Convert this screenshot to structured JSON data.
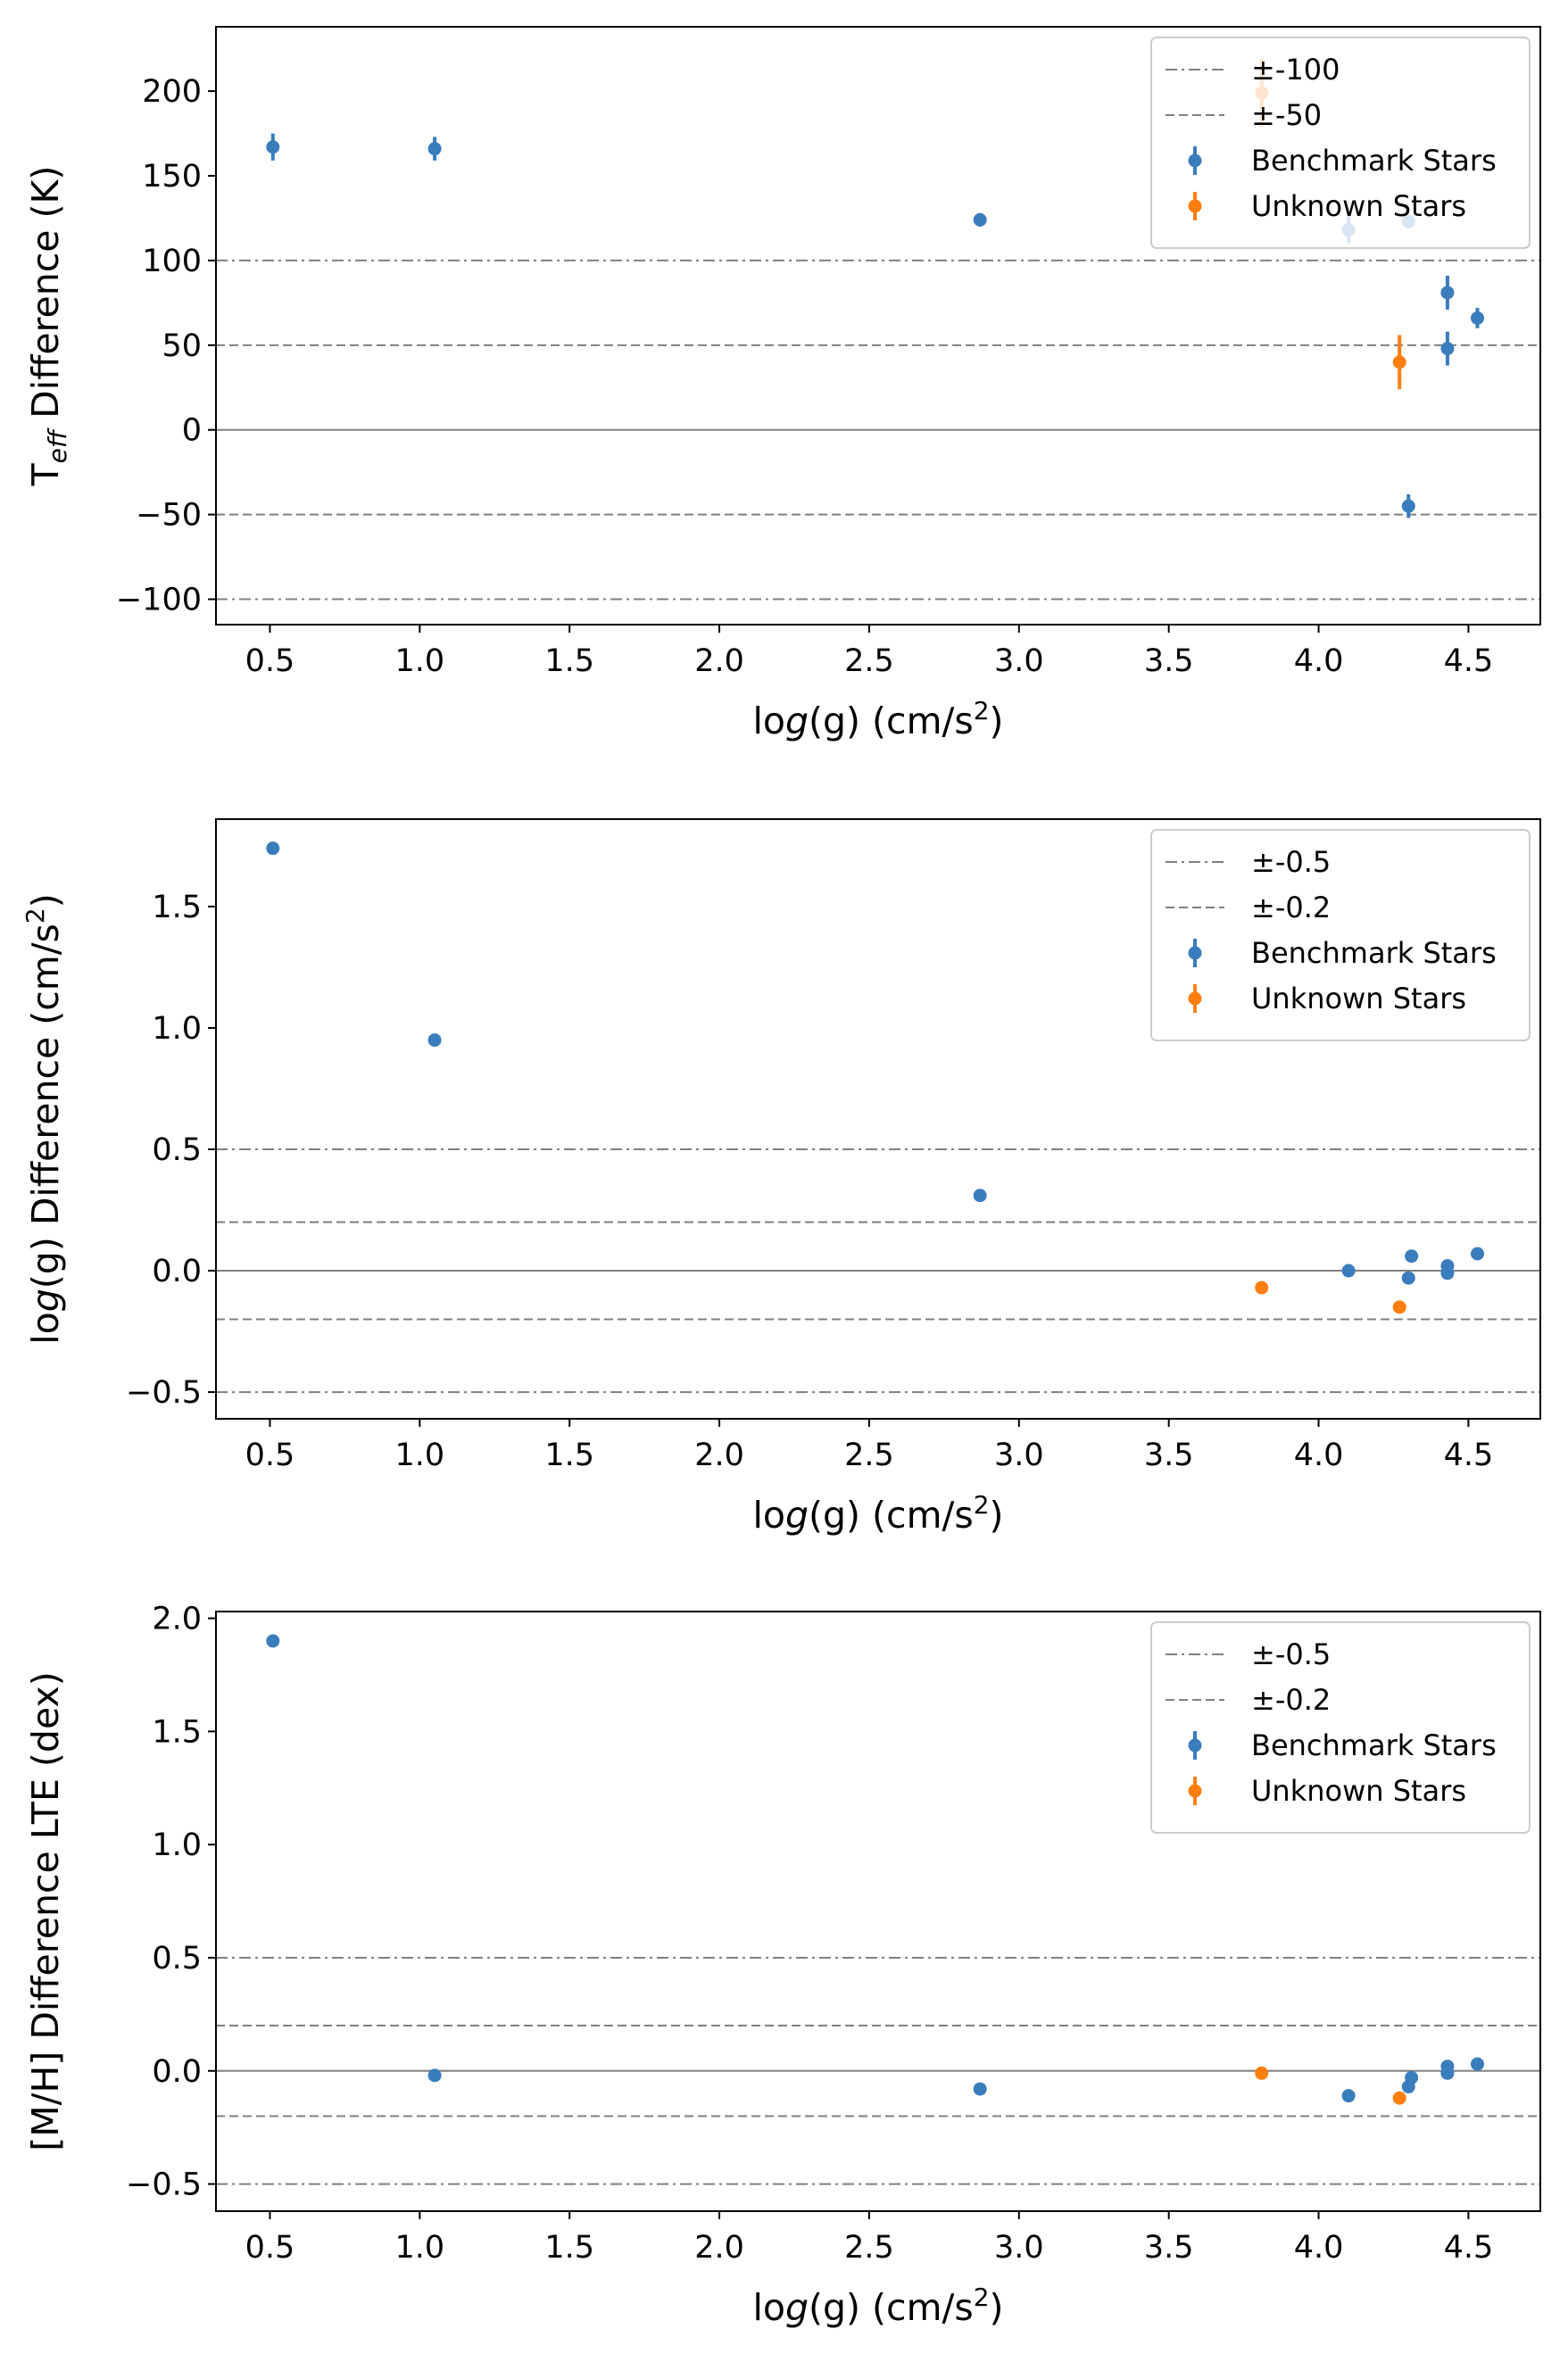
{
  "chart_data": [
    {
      "type": "scatter",
      "xlabel": "log(g) (cm/s2)",
      "ylabel": "Teff Difference (K)",
      "xlim": [
        0.32,
        4.74
      ],
      "ylim": [
        -115,
        238
      ],
      "xticks": [
        "0.5",
        "1.0",
        "1.5",
        "2.0",
        "2.5",
        "3.0",
        "3.5",
        "4.0",
        "4.5"
      ],
      "yticks": [
        "−100",
        "−50",
        "0",
        "50",
        "100",
        "150",
        "200"
      ],
      "reference_lines": [
        {
          "y": 0,
          "style": "solid"
        },
        {
          "y": 50,
          "style": "dashed"
        },
        {
          "y": -50,
          "style": "dashed"
        },
        {
          "y": 100,
          "style": "dashdot"
        },
        {
          "y": -100,
          "style": "dashdot"
        }
      ],
      "legend": {
        "position": "top-right",
        "entries": [
          {
            "label": "±-100",
            "kind": "dashdot"
          },
          {
            "label": "±-50",
            "kind": "dashed"
          },
          {
            "label": "Benchmark Stars",
            "kind": "errorbar",
            "color": "#3a7dbd"
          },
          {
            "label": "Unknown Stars",
            "kind": "errorbar",
            "color": "#ff7f0e"
          }
        ]
      },
      "series": [
        {
          "name": "Benchmark Stars",
          "color": "#3a7dbd",
          "points": [
            {
              "x": 0.51,
              "y": 167,
              "err": 8
            },
            {
              "x": 1.05,
              "y": 166,
              "err": 7
            },
            {
              "x": 2.87,
              "y": 124,
              "err": 4
            },
            {
              "x": 4.1,
              "y": 118,
              "err": 8
            },
            {
              "x": 4.3,
              "y": 123,
              "err": 4
            },
            {
              "x": 4.3,
              "y": -45,
              "err": 7
            },
            {
              "x": 4.43,
              "y": 81,
              "err": 10
            },
            {
              "x": 4.43,
              "y": 48,
              "err": 10
            },
            {
              "x": 4.53,
              "y": 66,
              "err": 6
            }
          ]
        },
        {
          "name": "Unknown Stars",
          "color": "#ff7f0e",
          "points": [
            {
              "x": 3.81,
              "y": 199,
              "err": 20
            },
            {
              "x": 4.27,
              "y": 40,
              "err": 16
            }
          ]
        }
      ]
    },
    {
      "type": "scatter",
      "xlabel": "log(g) (cm/s2)",
      "ylabel": "log(g) Difference (cm/s2)",
      "xlim": [
        0.32,
        4.74
      ],
      "ylim": [
        -0.61,
        1.86
      ],
      "xticks": [
        "0.5",
        "1.0",
        "1.5",
        "2.0",
        "2.5",
        "3.0",
        "3.5",
        "4.0",
        "4.5"
      ],
      "yticks": [
        "−0.5",
        "0.0",
        "0.5",
        "1.0",
        "1.5"
      ],
      "reference_lines": [
        {
          "y": 0,
          "style": "solid"
        },
        {
          "y": 0.2,
          "style": "dashed"
        },
        {
          "y": -0.2,
          "style": "dashed"
        },
        {
          "y": 0.5,
          "style": "dashdot"
        },
        {
          "y": -0.5,
          "style": "dashdot"
        }
      ],
      "legend": {
        "position": "top-right",
        "entries": [
          {
            "label": "±-0.5",
            "kind": "dashdot"
          },
          {
            "label": "±-0.2",
            "kind": "dashed"
          },
          {
            "label": "Benchmark Stars",
            "kind": "errorbar",
            "color": "#3a7dbd"
          },
          {
            "label": "Unknown Stars",
            "kind": "errorbar",
            "color": "#ff7f0e"
          }
        ]
      },
      "series": [
        {
          "name": "Benchmark Stars",
          "color": "#3a7dbd",
          "points": [
            {
              "x": 0.51,
              "y": 1.74,
              "err": 0
            },
            {
              "x": 1.05,
              "y": 0.95,
              "err": 0
            },
            {
              "x": 2.87,
              "y": 0.31,
              "err": 0
            },
            {
              "x": 4.1,
              "y": 0.0,
              "err": 0
            },
            {
              "x": 4.3,
              "y": -0.03,
              "err": 0
            },
            {
              "x": 4.31,
              "y": 0.06,
              "err": 0
            },
            {
              "x": 4.43,
              "y": 0.02,
              "err": 0
            },
            {
              "x": 4.43,
              "y": -0.01,
              "err": 0
            },
            {
              "x": 4.53,
              "y": 0.07,
              "err": 0
            }
          ]
        },
        {
          "name": "Unknown Stars",
          "color": "#ff7f0e",
          "points": [
            {
              "x": 3.81,
              "y": -0.07,
              "err": 0
            },
            {
              "x": 4.27,
              "y": -0.15,
              "err": 0
            }
          ]
        }
      ]
    },
    {
      "type": "scatter",
      "xlabel": "log(g) (cm/s2)",
      "ylabel": "[M/H] Difference LTE (dex)",
      "xlim": [
        0.32,
        4.74
      ],
      "ylim": [
        -0.62,
        2.03
      ],
      "xticks": [
        "0.5",
        "1.0",
        "1.5",
        "2.0",
        "2.5",
        "3.0",
        "3.5",
        "4.0",
        "4.5"
      ],
      "yticks": [
        "−0.5",
        "0.0",
        "0.5",
        "1.0",
        "1.5",
        "2.0"
      ],
      "reference_lines": [
        {
          "y": 0,
          "style": "solid"
        },
        {
          "y": 0.2,
          "style": "dashed"
        },
        {
          "y": -0.2,
          "style": "dashed"
        },
        {
          "y": 0.5,
          "style": "dashdot"
        },
        {
          "y": -0.5,
          "style": "dashdot"
        }
      ],
      "legend": {
        "position": "top-right",
        "entries": [
          {
            "label": "±-0.5",
            "kind": "dashdot"
          },
          {
            "label": "±-0.2",
            "kind": "dashed"
          },
          {
            "label": "Benchmark Stars",
            "kind": "errorbar",
            "color": "#3a7dbd"
          },
          {
            "label": "Unknown Stars",
            "kind": "errorbar",
            "color": "#ff7f0e"
          }
        ]
      },
      "series": [
        {
          "name": "Benchmark Stars",
          "color": "#3a7dbd",
          "points": [
            {
              "x": 0.51,
              "y": 1.9,
              "err": 0
            },
            {
              "x": 1.05,
              "y": -0.02,
              "err": 0
            },
            {
              "x": 2.87,
              "y": -0.08,
              "err": 0
            },
            {
              "x": 4.1,
              "y": -0.11,
              "err": 0
            },
            {
              "x": 4.3,
              "y": -0.07,
              "err": 0
            },
            {
              "x": 4.31,
              "y": -0.03,
              "err": 0
            },
            {
              "x": 4.43,
              "y": 0.02,
              "err": 0
            },
            {
              "x": 4.43,
              "y": -0.01,
              "err": 0
            },
            {
              "x": 4.53,
              "y": 0.03,
              "err": 0
            }
          ]
        },
        {
          "name": "Unknown Stars",
          "color": "#ff7f0e",
          "points": [
            {
              "x": 3.81,
              "y": -0.01,
              "err": 0
            },
            {
              "x": 4.27,
              "y": -0.12,
              "err": 0
            }
          ]
        }
      ]
    }
  ]
}
